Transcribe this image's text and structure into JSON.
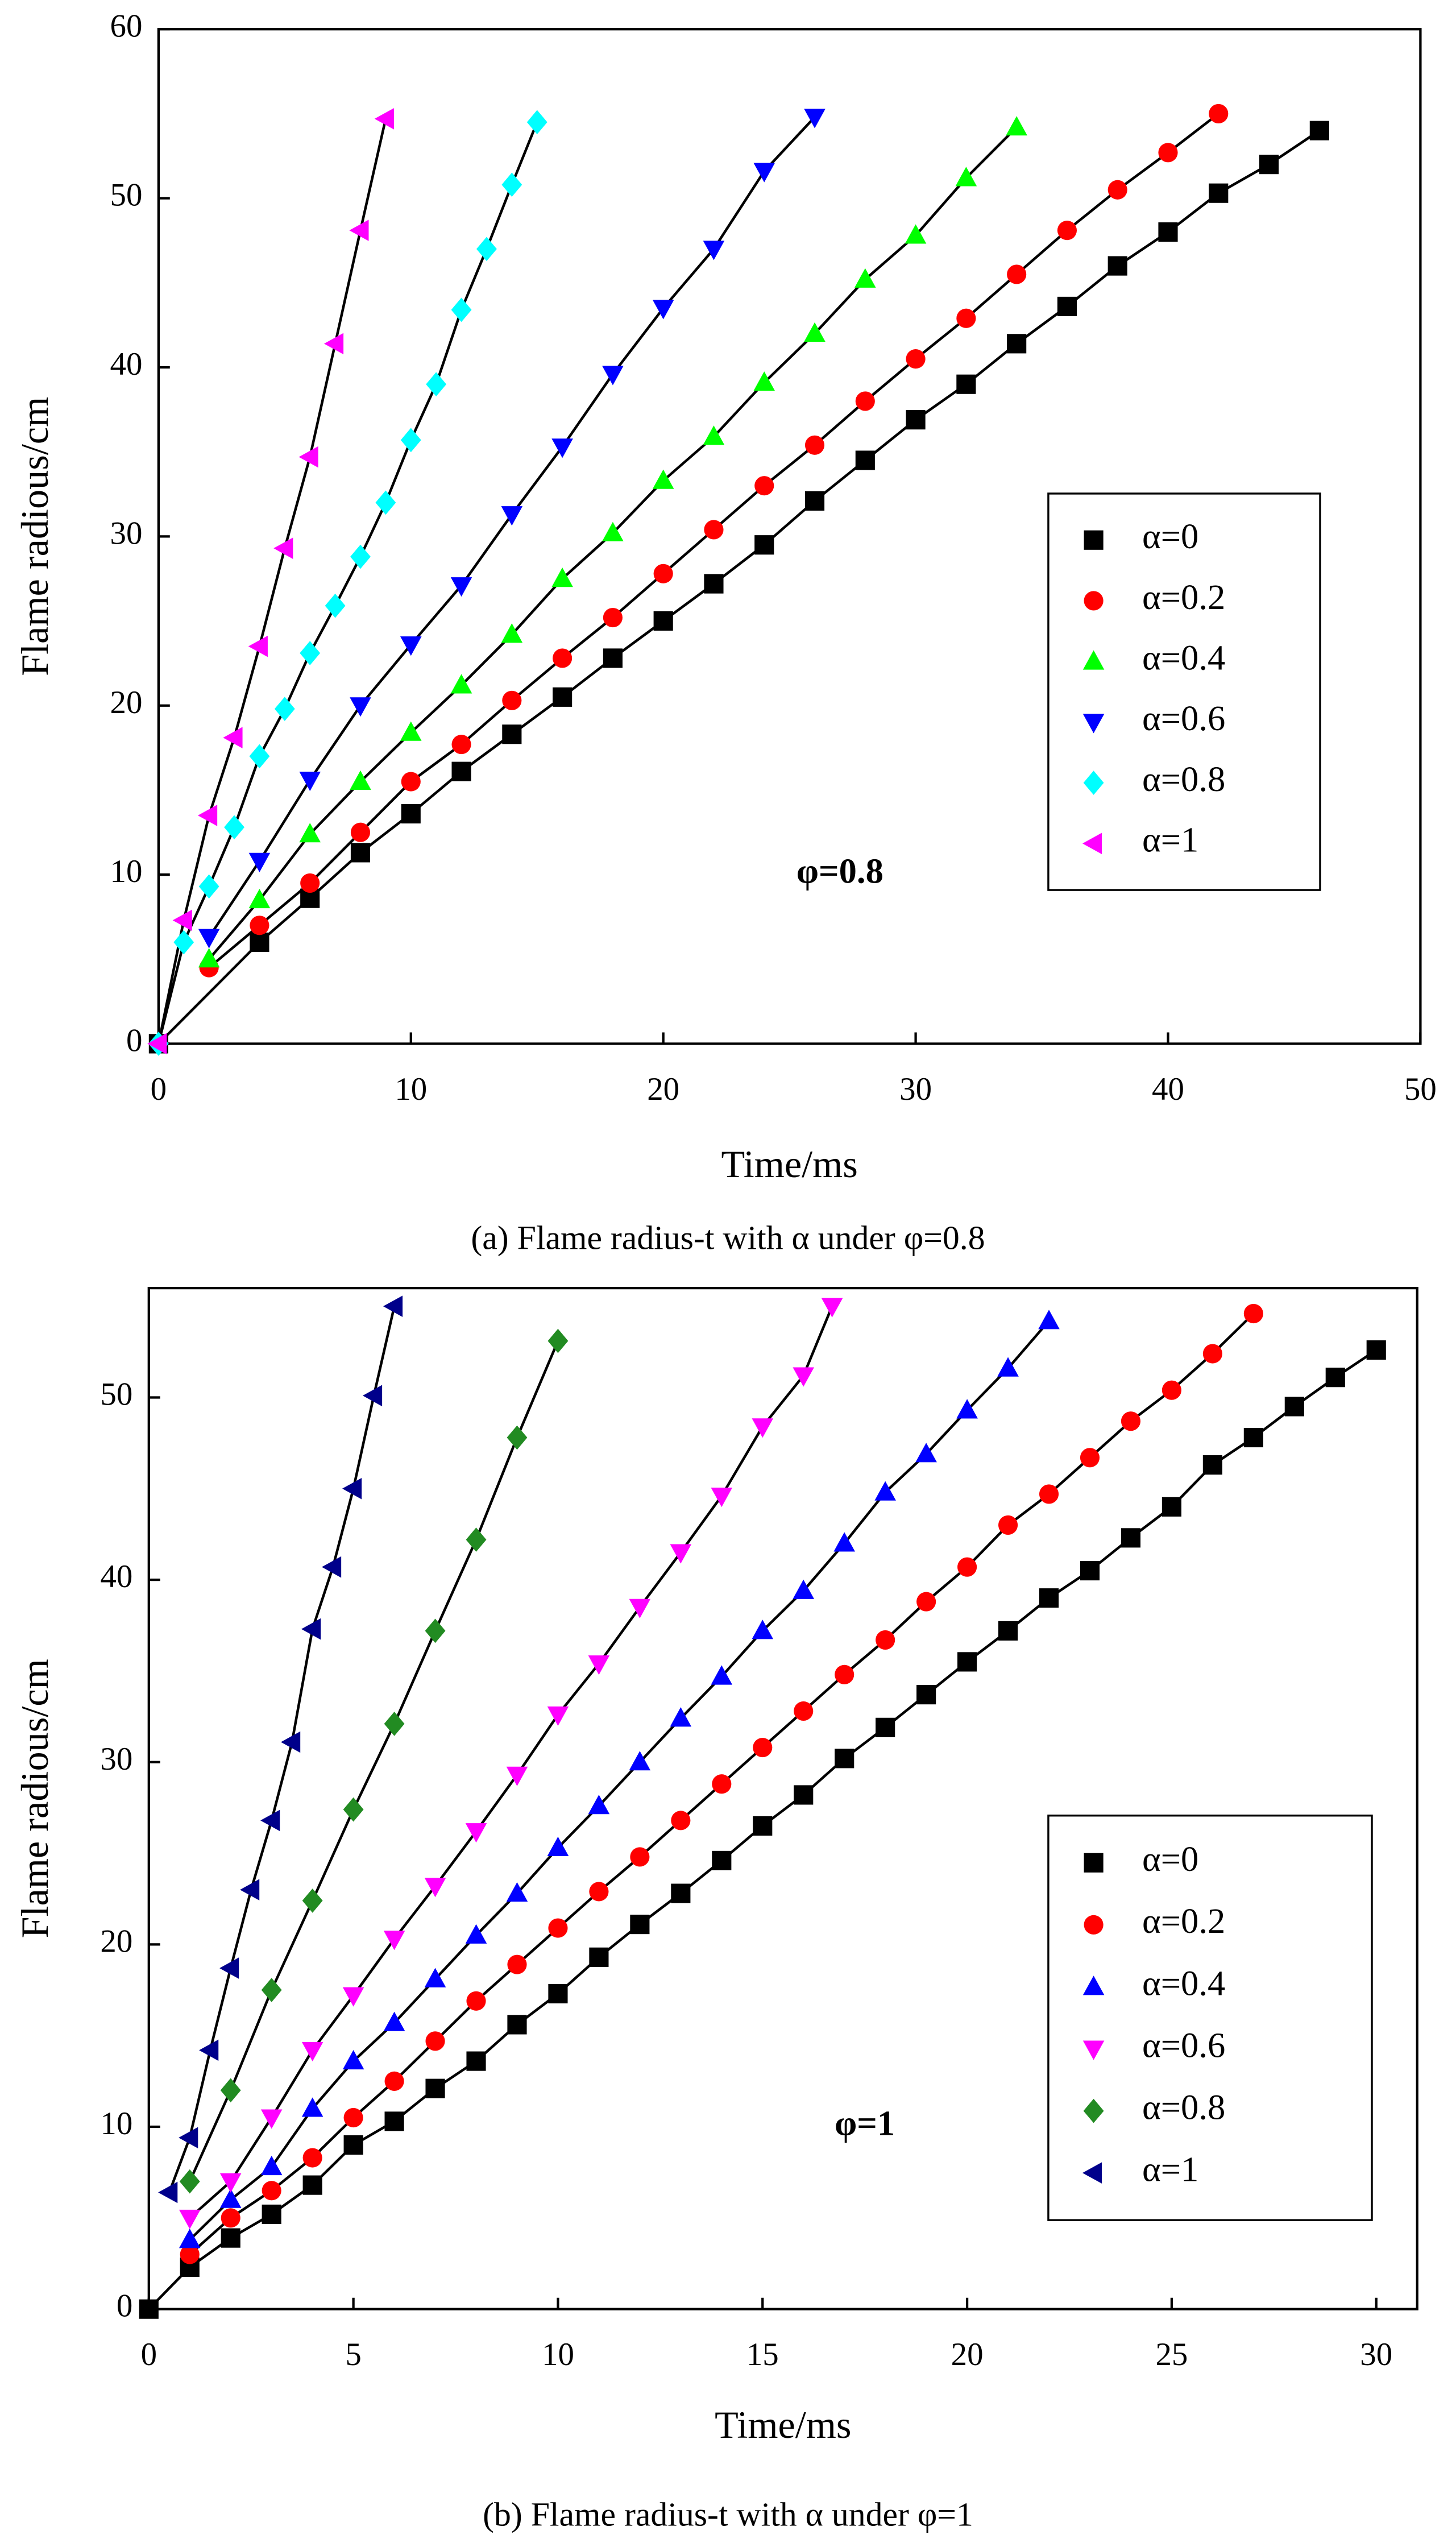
{
  "chart_data": [
    {
      "type": "scatter",
      "caption": "(a) Flame radius-t with α under φ=0.8",
      "xlabel": "Time/ms",
      "ylabel": "Flame radious/cm",
      "annotation": "φ=0.8",
      "xlim": [
        0,
        50
      ],
      "ylim": [
        0,
        60
      ],
      "xticks": [
        0,
        10,
        20,
        30,
        40,
        50
      ],
      "yticks": [
        0,
        10,
        20,
        30,
        40,
        50,
        60
      ],
      "legend": "right",
      "series": [
        {
          "name": "α=0",
          "color": "#000000",
          "marker": "square",
          "x": [
            0,
            4,
            6,
            8,
            10,
            12,
            14,
            16,
            18,
            20,
            22,
            24,
            26,
            28,
            30,
            32,
            34,
            36,
            38,
            40,
            42,
            44,
            46
          ],
          "values": [
            0,
            6,
            8.6,
            11.3,
            13.6,
            16.1,
            18.3,
            20.5,
            22.8,
            25,
            27.2,
            29.5,
            32.1,
            34.5,
            36.9,
            39,
            41.4,
            43.6,
            46,
            48,
            50.3,
            52,
            54
          ]
        },
        {
          "name": "α=0.2",
          "color": "#ff0000",
          "marker": "circle",
          "x": [
            2,
            4,
            6,
            8,
            10,
            12,
            14,
            16,
            18,
            20,
            22,
            24,
            26,
            28,
            30,
            32,
            34,
            36,
            38,
            40,
            42
          ],
          "values": [
            4.5,
            7,
            9.5,
            12.5,
            15.5,
            17.7,
            20.3,
            22.8,
            25.2,
            27.8,
            30.4,
            33,
            35.4,
            38,
            40.5,
            42.9,
            45.5,
            48.1,
            50.5,
            52.7,
            55
          ]
        },
        {
          "name": "α=0.4",
          "color": "#00ff00",
          "marker": "triangle-up",
          "x": [
            2,
            4,
            6,
            8,
            10,
            12,
            14,
            16,
            18,
            20,
            22,
            24,
            26,
            28,
            30,
            32,
            34
          ],
          "values": [
            5,
            8.5,
            12.4,
            15.5,
            18.4,
            21.2,
            24.2,
            27.5,
            30.2,
            33.3,
            35.9,
            39.1,
            42,
            45.2,
            47.8,
            51.2,
            54.2
          ]
        },
        {
          "name": "α=0.6",
          "color": "#0000ff",
          "marker": "triangle-down",
          "x": [
            2,
            4,
            6,
            8,
            10,
            12,
            14,
            16,
            18,
            20,
            22,
            24,
            26
          ],
          "values": [
            6.3,
            10.8,
            15.6,
            20,
            23.6,
            27.1,
            31.3,
            35.3,
            39.6,
            43.5,
            47,
            51.6,
            54.8
          ]
        },
        {
          "name": "α=0.8",
          "color": "#00ffff",
          "marker": "diamond",
          "x": [
            0,
            1,
            2,
            3,
            4,
            5,
            6,
            7,
            8,
            9,
            10,
            11,
            12,
            13,
            14,
            15
          ],
          "values": [
            0,
            6,
            9.3,
            12.8,
            17,
            19.8,
            23.1,
            25.9,
            28.8,
            32,
            35.7,
            39,
            43.4,
            47,
            50.8,
            54.5
          ]
        },
        {
          "name": "α=1",
          "color": "#ff00ff",
          "marker": "triangle-left",
          "x": [
            0,
            1,
            2,
            3,
            4,
            5,
            6,
            7,
            8,
            9
          ],
          "values": [
            0,
            7.3,
            13.5,
            18.1,
            23.5,
            29.3,
            34.7,
            41.4,
            48.1,
            54.7
          ]
        }
      ]
    },
    {
      "type": "scatter",
      "caption": "(b) Flame radius-t with α under φ=1",
      "xlabel": "Time/ms",
      "ylabel": "Flame radious/cm",
      "annotation": "φ=1",
      "xlim": [
        0,
        31
      ],
      "ylim": [
        0,
        56
      ],
      "xticks": [
        0,
        5,
        10,
        15,
        20,
        25,
        30
      ],
      "yticks": [
        0,
        10,
        20,
        30,
        40,
        50
      ],
      "legend": "right",
      "series": [
        {
          "name": "α=0",
          "color": "#000000",
          "marker": "square",
          "x": [
            0,
            1,
            2,
            3,
            4,
            5,
            6,
            7,
            8,
            9,
            10,
            11,
            12,
            13,
            14,
            15,
            16,
            17,
            18,
            19,
            20,
            21,
            22,
            23,
            24,
            25,
            26,
            27,
            28,
            29,
            30
          ],
          "values": [
            0,
            2.3,
            3.9,
            5.2,
            6.8,
            9,
            10.3,
            12.1,
            13.6,
            15.6,
            17.3,
            19.3,
            21.1,
            22.8,
            24.6,
            26.5,
            28.2,
            30.2,
            31.9,
            33.7,
            35.5,
            37.2,
            39,
            40.5,
            42.3,
            44,
            46.3,
            47.8,
            49.5,
            51.1,
            52.6
          ]
        },
        {
          "name": "α=0.2",
          "color": "#ff0000",
          "marker": "circle",
          "x": [
            1,
            2,
            3,
            4,
            5,
            6,
            7,
            8,
            9,
            10,
            11,
            12,
            13,
            14,
            15,
            16,
            17,
            18,
            19,
            20,
            21,
            22,
            23,
            24,
            25,
            26,
            27
          ],
          "values": [
            3,
            5,
            6.5,
            8.3,
            10.5,
            12.5,
            14.7,
            16.9,
            18.9,
            20.9,
            22.9,
            24.8,
            26.8,
            28.8,
            30.8,
            32.8,
            34.8,
            36.7,
            38.8,
            40.7,
            43,
            44.7,
            46.7,
            48.7,
            50.4,
            52.4,
            54.6
          ]
        },
        {
          "name": "α=0.4",
          "color": "#0000ff",
          "marker": "triangle-up",
          "x": [
            1,
            2,
            3,
            4,
            5,
            6,
            7,
            8,
            9,
            10,
            11,
            12,
            13,
            14,
            15,
            16,
            17,
            18,
            19,
            20,
            21,
            22
          ],
          "values": [
            3.8,
            6,
            7.8,
            11,
            13.6,
            15.7,
            18.1,
            20.5,
            22.8,
            25.3,
            27.6,
            30,
            32.4,
            34.7,
            37.2,
            39.4,
            42,
            44.8,
            46.9,
            49.3,
            51.6,
            54.2
          ]
        },
        {
          "name": "α=0.6",
          "color": "#ff00ff",
          "marker": "triangle-down",
          "x": [
            1,
            2,
            3,
            4,
            5,
            6,
            7,
            8,
            9,
            10,
            11,
            12,
            13,
            14,
            15,
            16,
            16.7
          ],
          "values": [
            5,
            7,
            10.5,
            14.2,
            17.2,
            20.3,
            23.2,
            26.2,
            29.3,
            32.6,
            35.4,
            38.5,
            41.5,
            44.6,
            48.4,
            51.2,
            55
          ]
        },
        {
          "name": "α=0.8",
          "color": "#228b22",
          "marker": "diamond",
          "x": [
            1,
            2,
            3,
            4,
            5,
            6,
            7,
            8,
            9,
            10
          ],
          "values": [
            7,
            12,
            17.5,
            22.4,
            27.4,
            32.1,
            37.2,
            42.2,
            47.8,
            53.1
          ]
        },
        {
          "name": "α=1",
          "color": "#00008b",
          "marker": "triangle-left",
          "x": [
            0.5,
            1,
            1.5,
            2,
            2.5,
            3,
            3.5,
            4,
            4.5,
            5,
            5.5,
            6
          ],
          "values": [
            6.4,
            9.4,
            14.2,
            18.7,
            23,
            26.8,
            31.1,
            37.3,
            40.7,
            45,
            50.1,
            55
          ]
        }
      ]
    }
  ]
}
